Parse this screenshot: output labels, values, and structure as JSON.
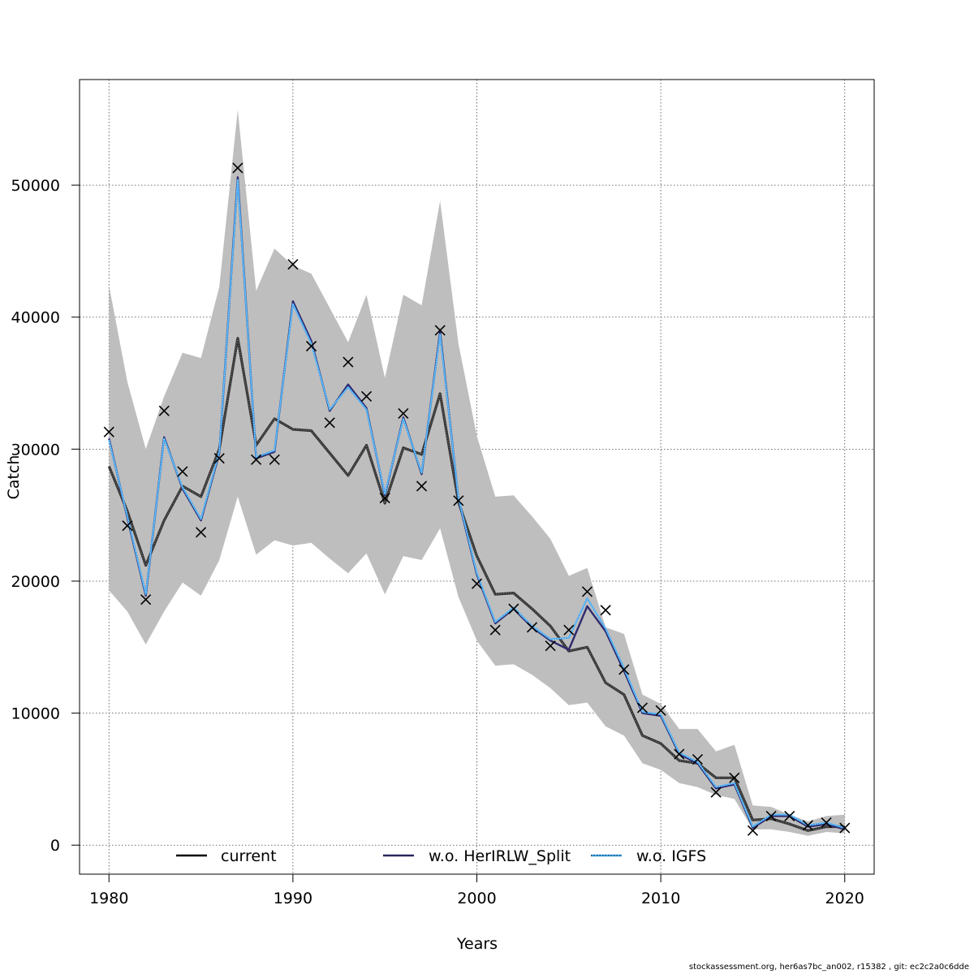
{
  "chart_data": {
    "type": "line",
    "xlabel": "Years",
    "ylabel": "Catch",
    "xlim": [
      1978.4,
      2021.6
    ],
    "ylim": [
      -2200,
      58000
    ],
    "x_ticks": [
      1980,
      1990,
      2000,
      2010,
      2020
    ],
    "y_ticks": [
      0,
      10000,
      20000,
      30000,
      40000,
      50000
    ],
    "grid": true,
    "legend_position": "bottom",
    "x": [
      1980,
      1981,
      1982,
      1983,
      1984,
      1985,
      1986,
      1987,
      1988,
      1989,
      1990,
      1991,
      1992,
      1993,
      1994,
      1995,
      1996,
      1997,
      1998,
      1999,
      2000,
      2001,
      2002,
      2003,
      2004,
      2005,
      2006,
      2007,
      2008,
      2009,
      2010,
      2011,
      2012,
      2013,
      2014,
      2015,
      2016,
      2017,
      2018,
      2019,
      2020
    ],
    "band": {
      "color": "#bebebe",
      "lower": [
        19300,
        17700,
        15200,
        17700,
        19900,
        18900,
        21600,
        26400,
        22000,
        23100,
        22700,
        22900,
        21700,
        20600,
        22100,
        19000,
        21900,
        21600,
        24000,
        18800,
        15500,
        13600,
        13700,
        12900,
        11900,
        10600,
        10800,
        9000,
        8300,
        6200,
        5700,
        4700,
        4400,
        3800,
        3500,
        1200,
        1200,
        1000,
        700,
        1000,
        900
      ],
      "upper": [
        42400,
        35100,
        30000,
        34000,
        37300,
        36900,
        42300,
        55700,
        42000,
        45200,
        43900,
        43300,
        40700,
        38100,
        41700,
        35400,
        41700,
        40900,
        48800,
        38000,
        31000,
        26400,
        26500,
        24900,
        23200,
        20400,
        21000,
        16500,
        16000,
        11400,
        10700,
        8800,
        8800,
        7100,
        7600,
        3000,
        2900,
        2300,
        1800,
        2200,
        2300
      ]
    },
    "series": [
      {
        "name": "current",
        "color": "#000000",
        "values": [
          28700,
          25300,
          21200,
          24600,
          27200,
          26400,
          30000,
          38400,
          30300,
          32300,
          31500,
          31400,
          29700,
          28000,
          30300,
          25900,
          30100,
          29600,
          34200,
          26000,
          21900,
          19000,
          19100,
          17900,
          16600,
          14700,
          15000,
          12300,
          11400,
          8300,
          7700,
          6400,
          6200,
          5100,
          5100,
          1900,
          2000,
          1600,
          1100,
          1400,
          1400
        ]
      },
      {
        "name": "w.o. HerIRLW_Split",
        "color": "#2e2a6e",
        "values": [
          30800,
          24800,
          18900,
          30900,
          27000,
          24600,
          29700,
          50600,
          29300,
          29800,
          41200,
          38200,
          32900,
          34900,
          33100,
          26500,
          32400,
          28100,
          38900,
          26200,
          20500,
          16800,
          17900,
          16500,
          15500,
          14800,
          18100,
          16200,
          13200,
          10000,
          9800,
          6900,
          6200,
          4300,
          4600,
          1300,
          2200,
          2200,
          1400,
          1600,
          1200
        ]
      },
      {
        "name": "w.o. IGFS",
        "color": "#3fa9f5",
        "values": [
          30700,
          24900,
          19000,
          30800,
          27100,
          24700,
          29800,
          50400,
          29400,
          29900,
          41000,
          38000,
          33000,
          34700,
          33000,
          26600,
          32300,
          28200,
          38700,
          26300,
          20600,
          16900,
          18000,
          16600,
          15600,
          15700,
          18700,
          16400,
          13400,
          10100,
          9900,
          7000,
          6300,
          4400,
          4700,
          1400,
          2300,
          2300,
          1500,
          1700,
          1300
        ]
      }
    ],
    "observations": {
      "marker": "x",
      "color": "#000000",
      "values": [
        31300,
        24200,
        18600,
        32900,
        28300,
        23700,
        29300,
        51300,
        29200,
        29200,
        44000,
        37800,
        32000,
        36600,
        34000,
        26300,
        32700,
        27200,
        39000,
        26100,
        19800,
        16300,
        17900,
        16500,
        15100,
        16300,
        19200,
        17800,
        13300,
        10400,
        10200,
        6900,
        6500,
        4000,
        5100,
        1100,
        2200,
        2200,
        1500,
        1700,
        1300
      ]
    }
  },
  "footer": {
    "note": "stockassessment.org, her6as7bc_an002, r15382 , git: ec2c2a0c6dde"
  }
}
